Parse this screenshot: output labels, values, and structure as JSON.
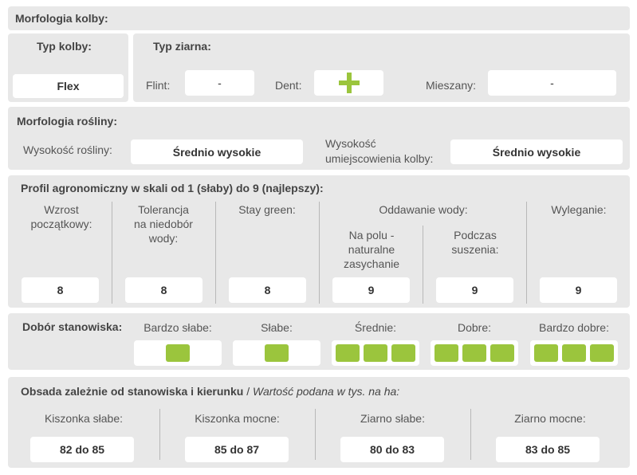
{
  "morfologia_kolby": {
    "title": "Morfologia kolby:",
    "typ_kolby_label": "Typ kolby:",
    "typ_kolby_value": "Flex",
    "typ_ziarna_label": "Typ ziarna:",
    "flint_label": "Flint:",
    "flint_value": "-",
    "dent_label": "Dent:",
    "dent_icon": "plus-icon",
    "mieszany_label": "Mieszany:",
    "mieszany_value": "-"
  },
  "morfologia_rosliny": {
    "title": "Morfologia rośliny:",
    "wysokosc_label": "Wysokość rośliny:",
    "wysokosc_value": "Średnio wysokie",
    "umiejscowienie_label_1": "Wysokość",
    "umiejscowienie_label_2": "umiejscowienia kolby:",
    "umiejscowienie_value": "Średnio wysokie"
  },
  "profil": {
    "title": "Profil agronomiczny w skali od 1 (słaby) do 9 (najlepszy):",
    "wzrost_1": "Wzrost",
    "wzrost_2": "początkowy:",
    "wzrost_value": "8",
    "tolerancja_1": "Tolerancja",
    "tolerancja_2": "na niedobór",
    "tolerancja_3": "wody:",
    "tolerancja_value": "8",
    "stay_green": "Stay green:",
    "stay_green_value": "8",
    "oddawanie": "Oddawanie wody:",
    "na_polu_1": "Na polu -",
    "na_polu_2": "naturalne",
    "na_polu_3": "zasychanie",
    "na_polu_value": "9",
    "podczas_1": "Podczas",
    "podczas_2": "suszenia:",
    "podczas_value": "9",
    "wyleganie": "Wyleganie:",
    "wyleganie_value": "9"
  },
  "dobor": {
    "title": "Dobór stanowiska:",
    "levels": [
      {
        "label": "Bardzo słabe:",
        "squares": 1
      },
      {
        "label": "Słabe:",
        "squares": 1
      },
      {
        "label": "Średnie:",
        "squares": 3
      },
      {
        "label": "Dobre:",
        "squares": 3
      },
      {
        "label": "Bardzo dobre:",
        "squares": 3
      }
    ],
    "square_color": "#9bc53d"
  },
  "obsada": {
    "title": "Obsada zależnie od stanowiska i kierunku",
    "title_sep": " / ",
    "title_italic": "Wartość podana w tys. na ha:",
    "kiszonka_slabe": "Kiszonka słabe:",
    "kiszonka_slabe_value": "82 do 85",
    "kiszonka_mocne": "Kiszonka mocne:",
    "kiszonka_mocne_value": "85 do 87",
    "ziarno_slabe": "Ziarno słabe:",
    "ziarno_slabe_value": "80 do 83",
    "ziarno_mocne": "Ziarno mocne:",
    "ziarno_mocne_value": "83 do 85"
  }
}
